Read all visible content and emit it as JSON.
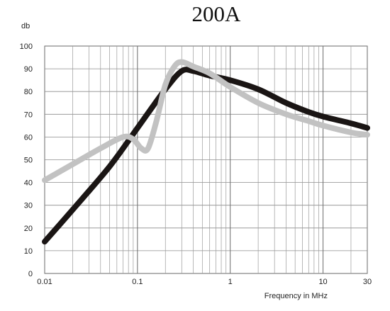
{
  "chart_data": {
    "type": "line",
    "title": "200A",
    "ylabel": "db",
    "xlabel": "Frequency in MHz",
    "x_scale": "log",
    "xlim": [
      0.01,
      30
    ],
    "ylim": [
      0,
      100
    ],
    "grid": true,
    "x_ticks": [
      {
        "value": 0.01,
        "label": "0.01"
      },
      {
        "value": 0.1,
        "label": "0.1"
      },
      {
        "value": 1,
        "label": "1"
      },
      {
        "value": 10,
        "label": "10"
      },
      {
        "value": 30,
        "label": "30"
      }
    ],
    "y_ticks": [
      {
        "value": 0,
        "label": "0"
      },
      {
        "value": 10,
        "label": "10"
      },
      {
        "value": 20,
        "label": "20"
      },
      {
        "value": 30,
        "label": "30"
      },
      {
        "value": 40,
        "label": "40"
      },
      {
        "value": 50,
        "label": "50"
      },
      {
        "value": 60,
        "label": "60"
      },
      {
        "value": 70,
        "label": "70"
      },
      {
        "value": 80,
        "label": "80"
      },
      {
        "value": 90,
        "label": "90"
      },
      {
        "value": 100,
        "label": "100"
      }
    ],
    "series": [
      {
        "color": "#1a1514",
        "x": [
          0.01,
          0.02,
          0.05,
          0.1,
          0.2,
          0.3,
          0.4,
          0.6,
          1,
          2,
          4,
          7,
          10,
          20,
          30
        ],
        "values": [
          14,
          28,
          47,
          64,
          81,
          89,
          89,
          87,
          85,
          81,
          75,
          71,
          69,
          66,
          64
        ]
      },
      {
        "color": "#c2c2c2",
        "x": [
          0.01,
          0.02,
          0.04,
          0.07,
          0.09,
          0.11,
          0.13,
          0.16,
          0.2,
          0.25,
          0.3,
          0.4,
          0.6,
          1,
          2,
          4,
          7,
          10,
          20,
          30
        ],
        "values": [
          41,
          48,
          55,
          60,
          59,
          55,
          55,
          67,
          83,
          91,
          93,
          91,
          88,
          82,
          75,
          70,
          67,
          65,
          62,
          61
        ]
      }
    ]
  }
}
